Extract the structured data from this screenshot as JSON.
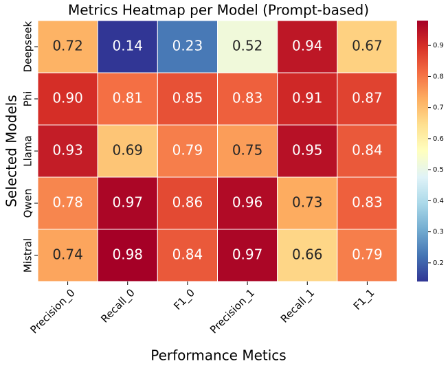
{
  "chart_data": {
    "type": "heatmap",
    "title": "Metrics Heatmap per Model (Prompt-based)",
    "xlabel": "Performance Metics",
    "ylabel": "Selected Models",
    "x": [
      "Precision_0",
      "Recall_0",
      "F1_0",
      "Precision_1",
      "Recall_1",
      "F1_1"
    ],
    "y": [
      "Deepseek",
      "Phi",
      "Llama",
      "Qwen",
      "Mistral"
    ],
    "values": [
      [
        0.72,
        0.14,
        0.23,
        0.52,
        0.94,
        0.67
      ],
      [
        0.9,
        0.81,
        0.85,
        0.83,
        0.91,
        0.87
      ],
      [
        0.93,
        0.69,
        0.79,
        0.75,
        0.95,
        0.84
      ],
      [
        0.78,
        0.97,
        0.86,
        0.96,
        0.73,
        0.83
      ],
      [
        0.74,
        0.98,
        0.84,
        0.97,
        0.66,
        0.79
      ]
    ],
    "value_labels": [
      [
        "0.72",
        "0.14",
        "0.23",
        "0.52",
        "0.94",
        "0.67"
      ],
      [
        "0.90",
        "0.81",
        "0.85",
        "0.83",
        "0.91",
        "0.87"
      ],
      [
        "0.93",
        "0.69",
        "0.79",
        "0.75",
        "0.95",
        "0.84"
      ],
      [
        "0.78",
        "0.97",
        "0.86",
        "0.96",
        "0.73",
        "0.83"
      ],
      [
        "0.74",
        "0.98",
        "0.84",
        "0.97",
        "0.66",
        "0.79"
      ]
    ],
    "colormap": "RdYlBu_r",
    "zlim": [
      0.14,
      0.98
    ],
    "zticks": [
      0.2,
      0.3,
      0.4,
      0.5,
      0.6,
      0.7,
      0.8,
      0.9
    ]
  }
}
